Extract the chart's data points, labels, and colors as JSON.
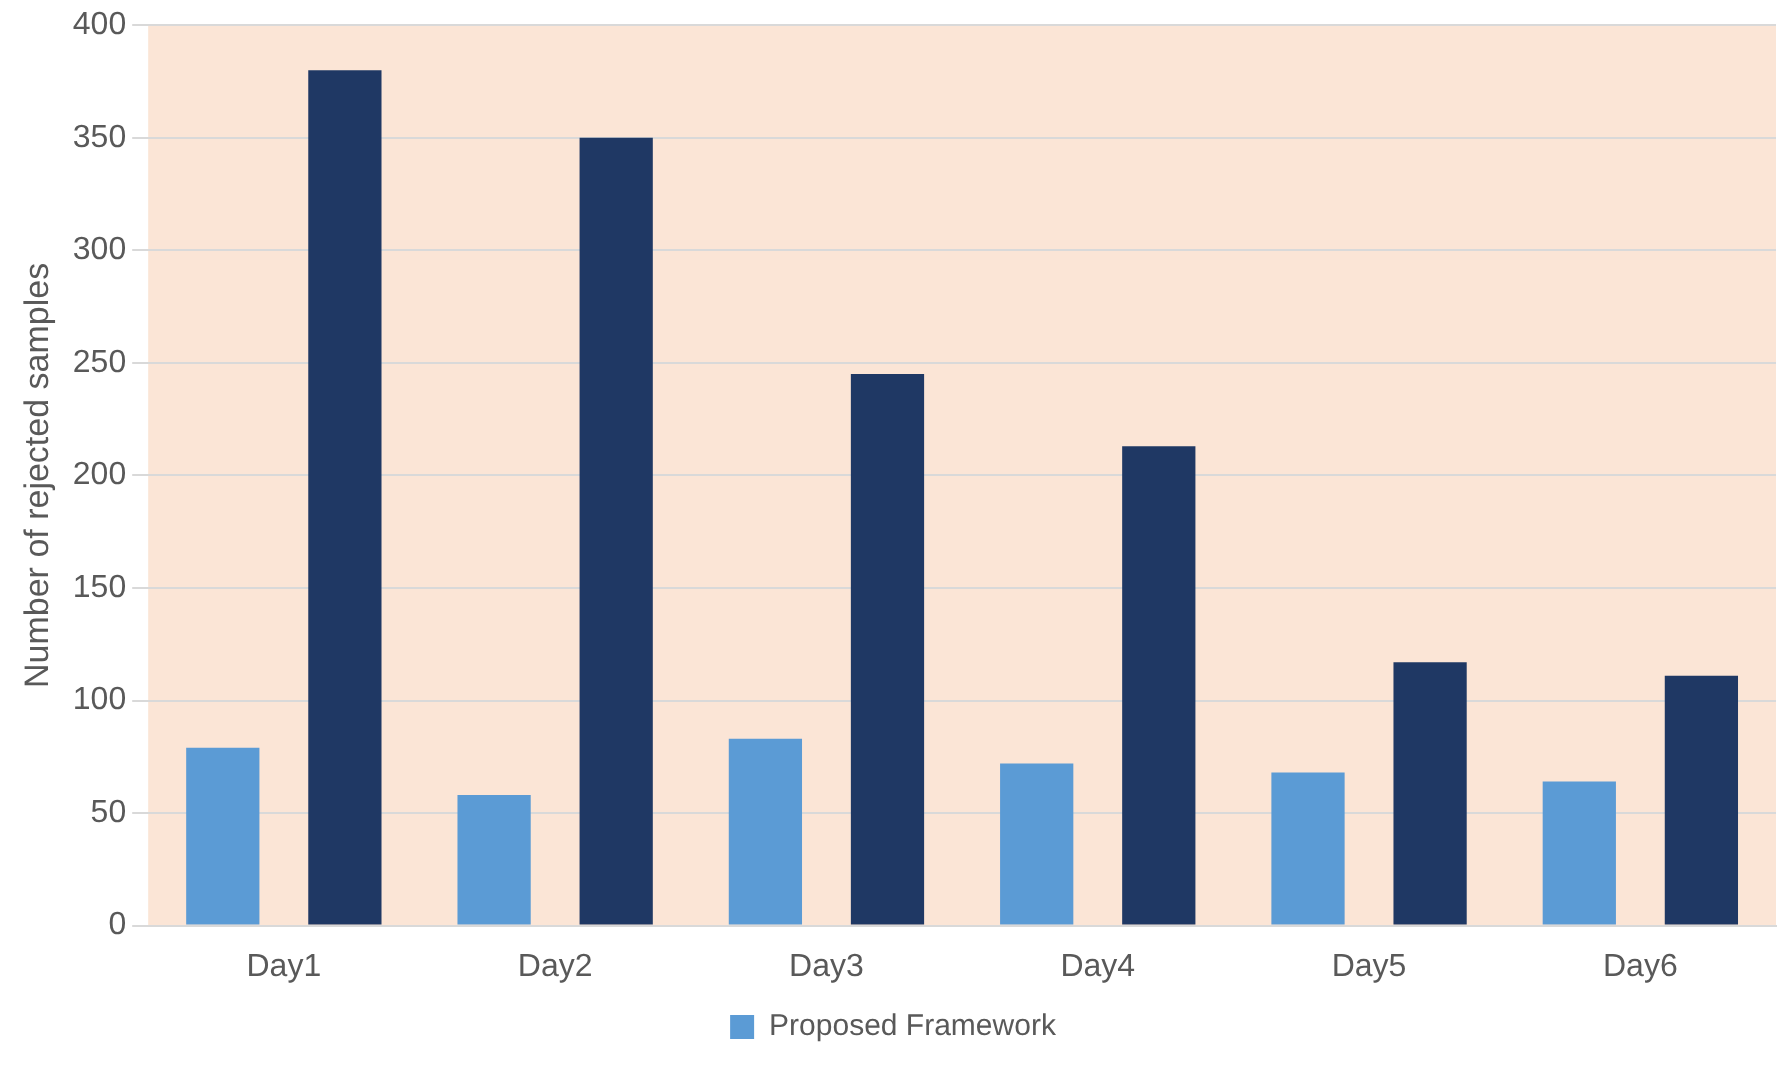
{
  "chart_data": {
    "type": "bar",
    "ylabel": "Number of rejected samples",
    "categories": [
      "Day1",
      "Day2",
      "Day3",
      "Day4",
      "Day5",
      "Day6"
    ],
    "series": [
      {
        "name": "Proposed Framework",
        "color": "#5b9bd5",
        "values": [
          79,
          58,
          83,
          72,
          68,
          64
        ]
      },
      {
        "color": "#1f3864",
        "values": [
          380,
          350,
          245,
          213,
          117,
          111
        ]
      }
    ],
    "ylim": [
      0,
      400
    ],
    "yticks": [
      0,
      50,
      100,
      150,
      200,
      250,
      300,
      350,
      400
    ],
    "grid": "y",
    "legend": "bottom"
  }
}
